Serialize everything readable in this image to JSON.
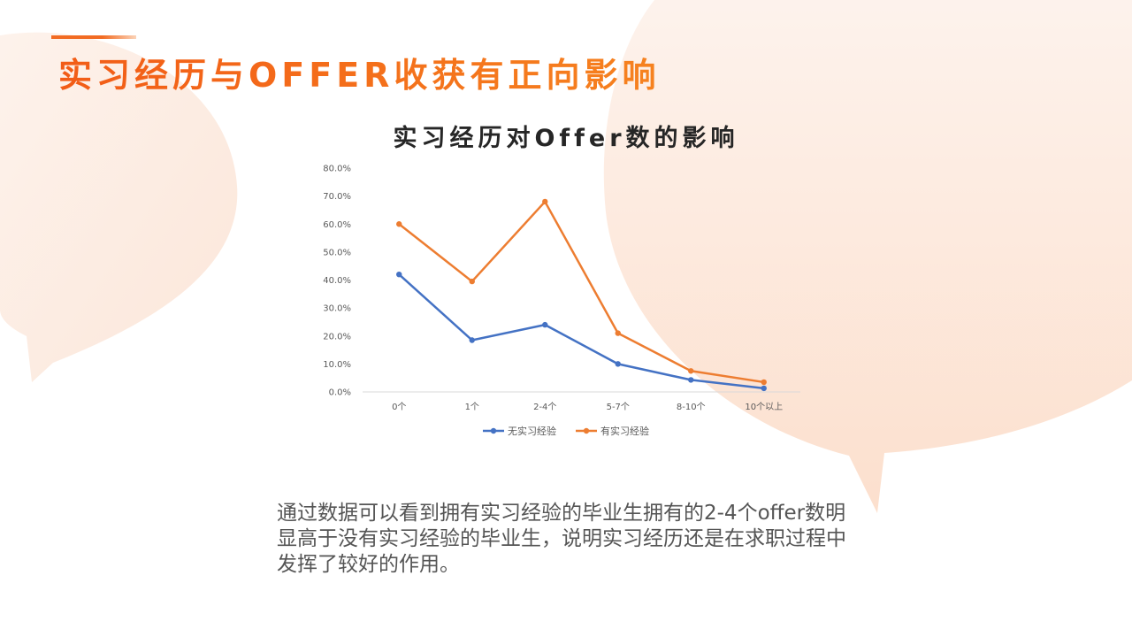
{
  "slide": {
    "title": "实习经历与OFFER收获有正向影响",
    "description": "通过数据可以看到拥有实习经验的毕业生拥有的2-4个offer数明显高于没有实习经验的毕业生，说明实习经历还是在求职过程中发挥了较好的作用。"
  },
  "colors": {
    "accent": "#f26b22",
    "series_blue": "#4472c4",
    "series_orange": "#ed7d31",
    "bg_shape": "#fde7da"
  },
  "chart_data": {
    "type": "line",
    "title": "实习经历对Offer数的影响",
    "xlabel": "",
    "ylabel": "",
    "categories": [
      "0个",
      "1个",
      "2-4个",
      "5-7个",
      "8-10个",
      "10个以上"
    ],
    "ylim": [
      0,
      0.8
    ],
    "yticks": [
      "0.0%",
      "10.0%",
      "20.0%",
      "30.0%",
      "40.0%",
      "50.0%",
      "60.0%",
      "70.0%",
      "80.0%"
    ],
    "series": [
      {
        "name": "无实习经验",
        "values": [
          0.42,
          0.185,
          0.24,
          0.1,
          0.043,
          0.013
        ]
      },
      {
        "name": "有实习经验",
        "values": [
          0.6,
          0.395,
          0.68,
          0.21,
          0.075,
          0.035
        ]
      }
    ],
    "grid": false,
    "legend": "bottom"
  }
}
